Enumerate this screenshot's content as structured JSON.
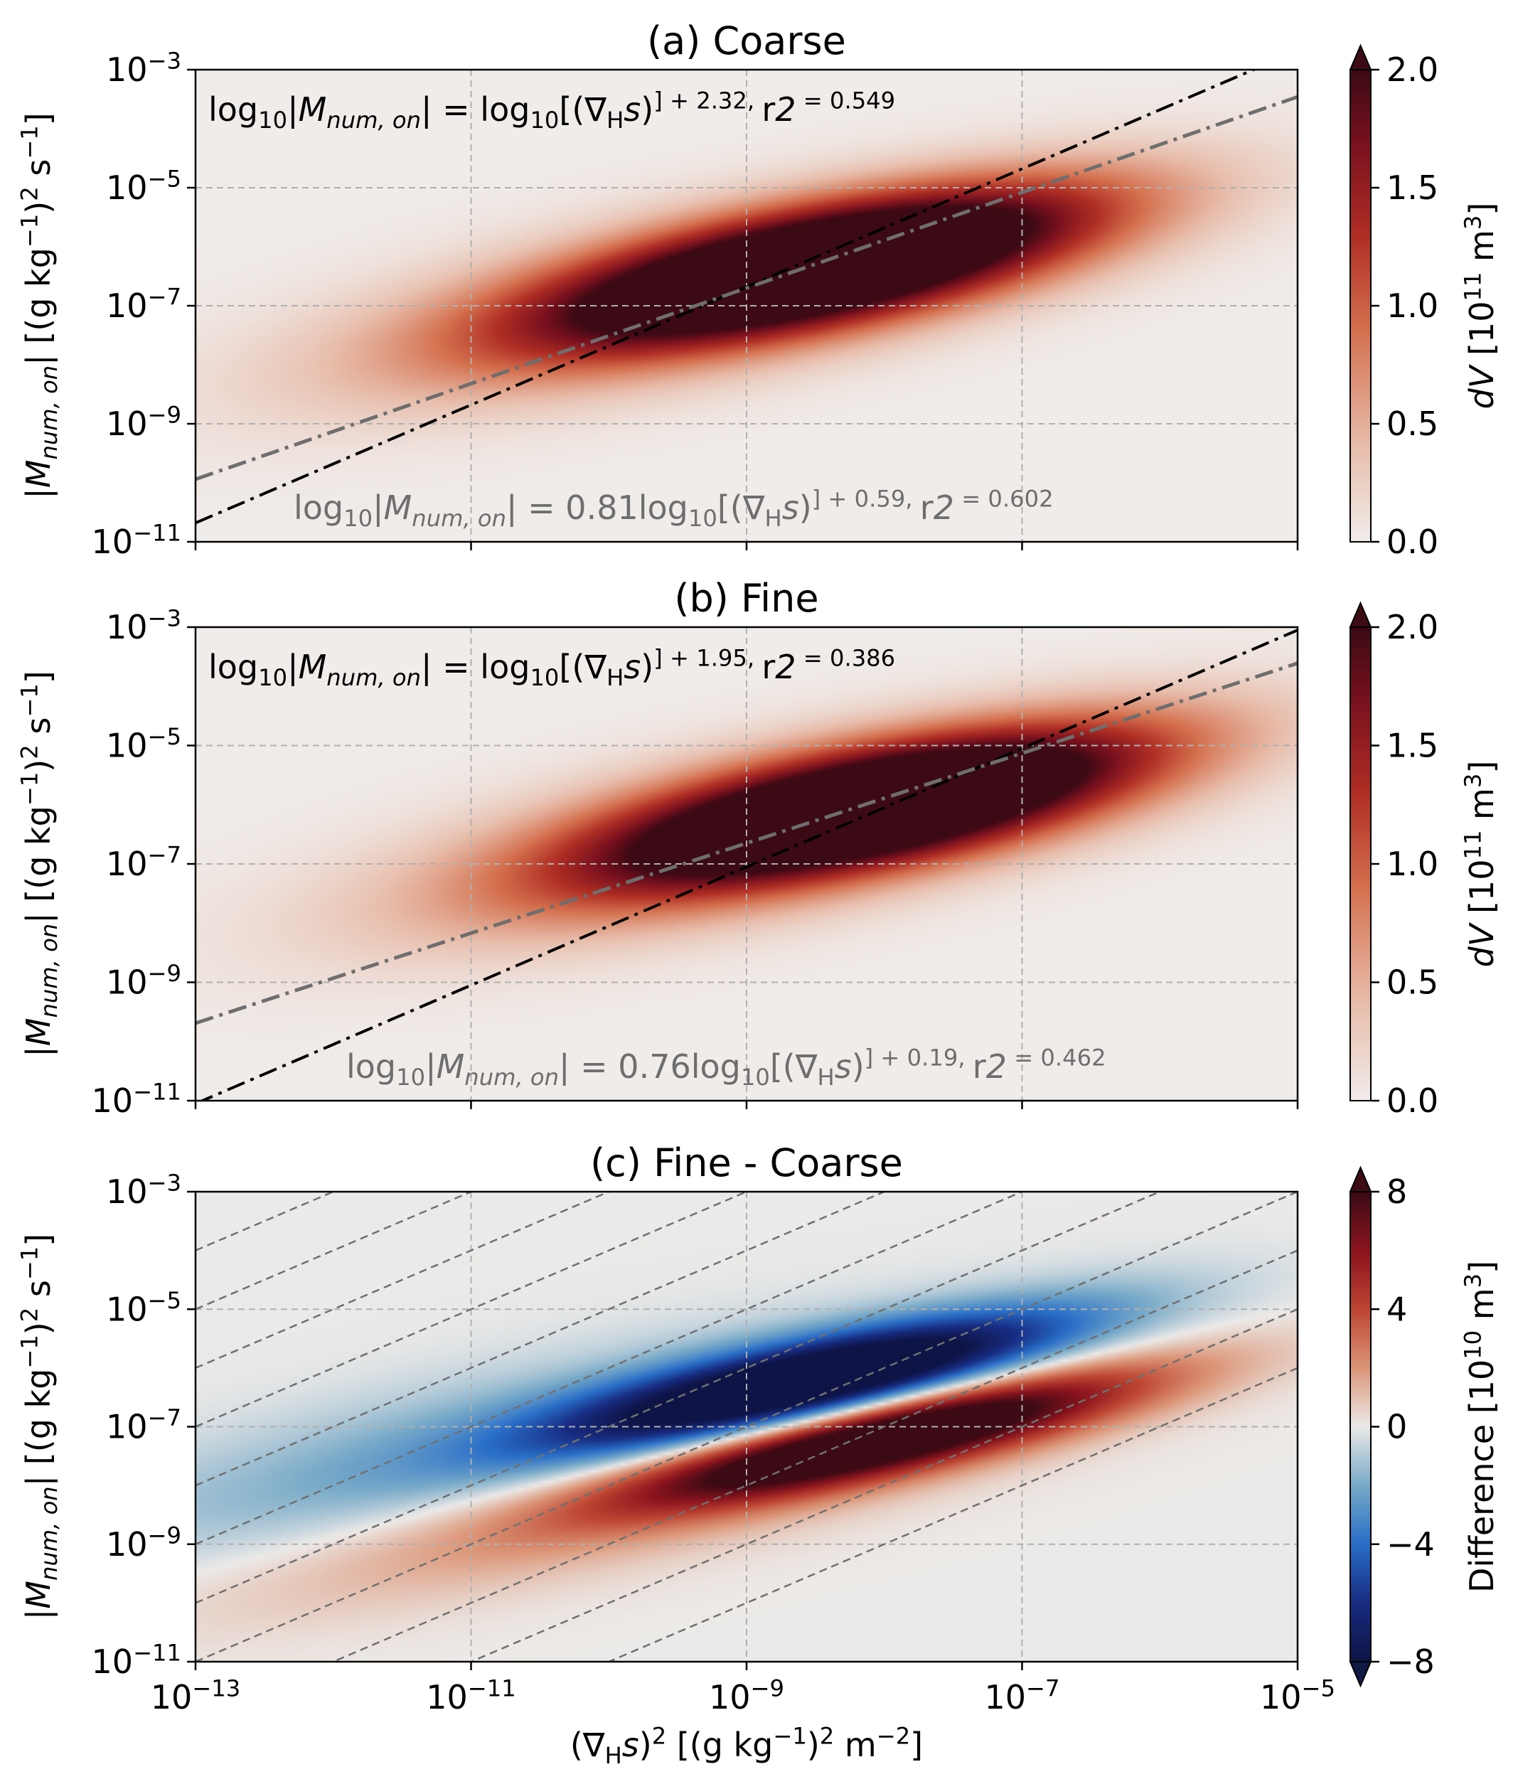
{
  "figure": {
    "xlabel": "(∇Hs)² [(g kg⁻¹)² m⁻²]",
    "x_ticks": [
      -13,
      -11,
      -9,
      -7,
      -5
    ],
    "y_ticks": [
      -3,
      -5,
      -7,
      -9,
      -11
    ]
  },
  "chart_data": [
    {
      "type": "heatmap",
      "title": "(a) Coarse",
      "ylabel": "|Mnum,on| [(g kg⁻¹)² s⁻¹]",
      "x_scale": "log",
      "y_scale": "log",
      "xlim": [
        1e-13,
        1e-05
      ],
      "ylim": [
        1e-11,
        0.001
      ],
      "grid": true,
      "colorbar": {
        "label": "dV [10¹¹ m³]",
        "ticks": [
          "0.0",
          "0.5",
          "1.0",
          "1.5",
          "2.0"
        ],
        "range": [
          0,
          2
        ],
        "extend": "max"
      },
      "density": {
        "center_log10": [
          -8.4,
          -6.3
        ],
        "peak_along_axis_log10": -8.4,
        "color": "#3d0b14"
      },
      "lines": [
        {
          "label_parts": [
            "log",
            "10",
            "|",
            "M",
            "num, on",
            "| =  log",
            "10",
            "[(∇",
            "H",
            "s)",
            "2",
            "] + 2.32, ",
            "r",
            "2",
            " = 0.549"
          ],
          "slope": 1.0,
          "intercept": 2.32,
          "r2": 0.549,
          "color": "#000000",
          "label_position": "top-left"
        },
        {
          "label_parts": [
            "log",
            "10",
            "|",
            "M",
            "num, on",
            "| =  0.81log",
            "10",
            "[(∇",
            "H",
            "s)",
            "2",
            "] + 0.59, ",
            "r",
            "2",
            " = 0.602"
          ],
          "slope": 0.81,
          "intercept": 0.59,
          "r2": 0.602,
          "color": "#6e6e6e",
          "label_position": "bottom"
        }
      ]
    },
    {
      "type": "heatmap",
      "title": "(b) Fine",
      "ylabel": "|Mnum,on| [(g kg⁻¹)² s⁻¹]",
      "x_scale": "log",
      "y_scale": "log",
      "xlim": [
        1e-13,
        1e-05
      ],
      "ylim": [
        1e-11,
        0.001
      ],
      "grid": true,
      "colorbar": {
        "label": "dV [10¹¹ m³]",
        "ticks": [
          "0.0",
          "0.5",
          "1.0",
          "1.5",
          "2.0"
        ],
        "range": [
          0,
          2
        ],
        "extend": "max"
      },
      "density": {
        "center_log10": [
          -8.0,
          -6.0
        ],
        "color": "#3d0b14"
      },
      "lines": [
        {
          "label_parts": [
            "log",
            "10",
            "|",
            "M",
            "num, on",
            "| =  log",
            "10",
            "[(∇",
            "H",
            "s)",
            "2",
            "] + 1.95, ",
            "r",
            "2",
            " = 0.386"
          ],
          "slope": 1.0,
          "intercept": 1.95,
          "r2": 0.386,
          "color": "#000000",
          "label_position": "top-left"
        },
        {
          "label_parts": [
            "log",
            "10",
            "|",
            "M",
            "num, on",
            "| =  0.76log",
            "10",
            "[(∇",
            "H",
            "s)",
            "2",
            "] + 0.19, ",
            "r",
            "2",
            " = 0.462"
          ],
          "slope": 0.76,
          "intercept": 0.19,
          "r2": 0.462,
          "color": "#6e6e6e",
          "label_position": "bottom"
        }
      ]
    },
    {
      "type": "heatmap",
      "title": "(c) Fine - Coarse",
      "ylabel": "|Mnum,on| [(g kg⁻¹)² s⁻¹]",
      "x_scale": "log",
      "y_scale": "log",
      "xlim": [
        1e-13,
        1e-05
      ],
      "ylim": [
        1e-11,
        0.001
      ],
      "grid": true,
      "colorbar": {
        "label": "Difference  [10¹⁰ m³]",
        "ticks": [
          "−8",
          "−4",
          "0",
          "4",
          "8"
        ],
        "range": [
          -8,
          8
        ],
        "extend": "both"
      },
      "diff": {
        "negative_center_log10": [
          -8.5,
          -6.2
        ],
        "positive_center_log10": [
          -8.0,
          -7.2
        ],
        "neg_color": "#0f1a45",
        "pos_color": "#3d0b14"
      },
      "reference_lines": {
        "slope": 1.0,
        "intercepts": [
          9,
          8,
          7,
          6,
          5,
          4,
          3,
          2,
          1,
          0,
          -1
        ],
        "color": "#707070",
        "style": "dashed"
      }
    }
  ]
}
